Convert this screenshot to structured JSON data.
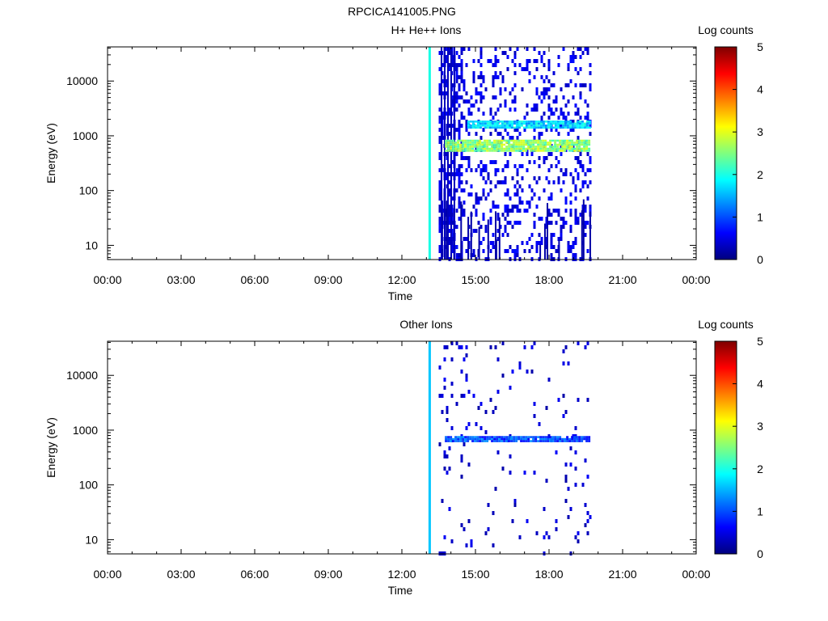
{
  "figure_title": "RPCICA141005.PNG",
  "colors": {
    "colormap": [
      "#00007f",
      "#0000ff",
      "#007fff",
      "#00ffff",
      "#7fff7f",
      "#ffff00",
      "#ff7f00",
      "#ff0000",
      "#7f0000"
    ],
    "background": "#ffffff"
  },
  "chart_data": [
    {
      "type": "heatmap",
      "title": "H+ He++ Ions",
      "xlabel": "Time",
      "ylabel": "Energy (eV)",
      "colorbar_label": "Log counts",
      "colorbar_range": [
        0,
        5
      ],
      "colorbar_ticks": [
        "0",
        "1",
        "2",
        "3",
        "4",
        "5"
      ],
      "xlim": [
        "00:00",
        "24:00"
      ],
      "x_ticks": [
        "00:00",
        "03:00",
        "06:00",
        "09:00",
        "12:00",
        "15:00",
        "18:00",
        "21:00",
        "00:00"
      ],
      "y_scale": "log",
      "ylim": [
        5.5,
        42000
      ],
      "y_ticks": [
        "10",
        "100",
        "1000",
        "10000"
      ],
      "data_time_span": [
        "13:10",
        "19:40"
      ],
      "features": [
        {
          "time": "13:08",
          "energy_range": [
            5.5,
            42000
          ],
          "log_counts": 2.0,
          "kind": "vertical stripe"
        },
        {
          "time_range": [
            "13:45",
            "19:40"
          ],
          "energy_range": [
            550,
            850
          ],
          "log_counts": 2.6,
          "kind": "horizontal band"
        },
        {
          "time_range": [
            "14:40",
            "19:40"
          ],
          "energy_range": [
            1400,
            1900
          ],
          "log_counts": 1.7,
          "kind": "horizontal band"
        },
        {
          "time_range": [
            "13:30",
            "19:40"
          ],
          "energy_range": [
            5.5,
            42000
          ],
          "log_counts": 0.3,
          "kind": "scattered pixels"
        }
      ],
      "grid": false
    },
    {
      "type": "heatmap",
      "title": "Other Ions",
      "xlabel": "Time",
      "ylabel": "Energy (eV)",
      "colorbar_label": "Log counts",
      "colorbar_range": [
        0,
        5
      ],
      "colorbar_ticks": [
        "0",
        "1",
        "2",
        "3",
        "4",
        "5"
      ],
      "xlim": [
        "00:00",
        "24:00"
      ],
      "x_ticks": [
        "00:00",
        "03:00",
        "06:00",
        "09:00",
        "12:00",
        "15:00",
        "18:00",
        "21:00",
        "00:00"
      ],
      "y_scale": "log",
      "ylim": [
        5.5,
        42000
      ],
      "y_ticks": [
        "10",
        "100",
        "1000",
        "10000"
      ],
      "data_time_span": [
        "13:10",
        "19:40"
      ],
      "features": [
        {
          "time": "13:08",
          "energy_range": [
            5.5,
            42000
          ],
          "log_counts": 1.6,
          "kind": "vertical stripe"
        },
        {
          "time_range": [
            "13:45",
            "19:40"
          ],
          "energy_range": [
            650,
            780
          ],
          "log_counts": 1.0,
          "kind": "horizontal band"
        },
        {
          "time_range": [
            "13:30",
            "19:40"
          ],
          "energy_range": [
            5.5,
            42000
          ],
          "log_counts": 0.2,
          "kind": "scattered pixels"
        }
      ],
      "grid": false
    }
  ]
}
